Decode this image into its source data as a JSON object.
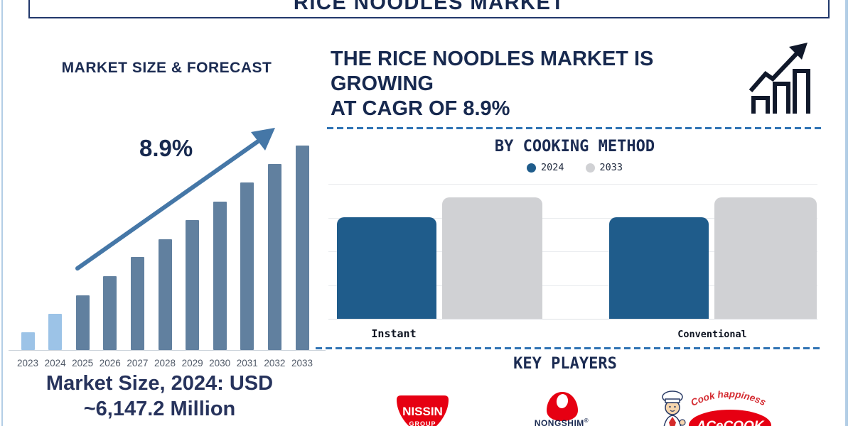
{
  "page": {
    "title": "RICE NOODLES MARKET"
  },
  "left_panel": {
    "heading": "MARKET SIZE & FORECAST",
    "cagr_annotation": "8.9%",
    "market_size_line1": "Market Size, 2024: USD",
    "market_size_line2": "~6,147.2 Million"
  },
  "right_panel": {
    "headline_line1": "THE RICE NOODLES MARKET IS GROWING",
    "headline_line2": "AT CAGR OF 8.9%",
    "cooking_method_title": "BY COOKING METHOD",
    "key_players_title": "KEY PLAYERS"
  },
  "logos": {
    "nissin": {
      "name": "NISSIN",
      "sub": "GROUP"
    },
    "nongshim": {
      "name": "NONGSHIM",
      "reg": "®"
    },
    "acecook": {
      "tagline": "Cook happiness",
      "name": "ACeCOOK"
    }
  },
  "colors": {
    "navy_text": "#17294f",
    "forecast_bar_light": "#9cc3e7",
    "forecast_bar_dark": "#61809f",
    "arrow_blue": "#4577a7",
    "series_2024_blue": "#1f5c8b",
    "series_2033_gray": "#d0d1d4",
    "dashed_line_blue": "#2f73b4",
    "logo_red": "#e60012",
    "icon_black": "#10182a"
  },
  "chart_data": [
    {
      "type": "bar",
      "title": "MARKET SIZE & FORECAST",
      "categories": [
        "2023",
        "2024",
        "2025",
        "2026",
        "2027",
        "2028",
        "2029",
        "2030",
        "2031",
        "2032",
        "2033"
      ],
      "values": [
        25,
        51,
        77,
        104,
        131,
        156,
        183,
        209,
        236,
        262,
        288
      ],
      "values_note": "relative bar heights (no y-axis shown); 2024 market size = USD ~6,147.2 Million, growing at CAGR 8.9% through 2033",
      "bar_colors": [
        "#9cc3e7",
        "#9cc3e7",
        "#61809f",
        "#61809f",
        "#61809f",
        "#61809f",
        "#61809f",
        "#61809f",
        "#61809f",
        "#61809f",
        "#61809f"
      ],
      "annotation": "8.9%",
      "xlabel": "",
      "ylabel": "",
      "grid": false
    },
    {
      "type": "bar",
      "title": "BY COOKING METHOD",
      "categories": [
        "Instant",
        "Conventional"
      ],
      "series": [
        {
          "name": "2024",
          "color": "#1f5c8b",
          "values": [
            3.0,
            3.0
          ]
        },
        {
          "name": "2033",
          "color": "#d0d1d4",
          "values": [
            3.6,
            3.6
          ]
        }
      ],
      "values_note": "heights in gridline units (no y-axis labels shown)",
      "ylim": [
        0,
        4
      ],
      "grid": true,
      "legend_position": "top"
    }
  ]
}
